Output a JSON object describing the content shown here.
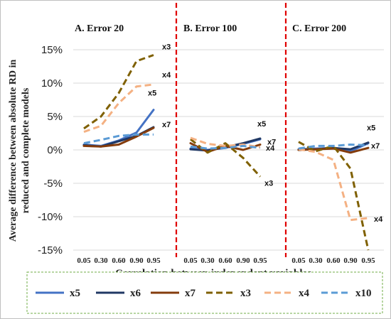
{
  "chart_data": {
    "type": "line",
    "ylabel_lines": [
      "Average difference between absolute RD in",
      "reduced and complete models"
    ],
    "xlabel": "Correlation between independent variables",
    "y_ticks": [
      "15%",
      "10%",
      "5%",
      "0%",
      "-5%",
      "-10%",
      "-15%"
    ],
    "ylim": [
      -15,
      15
    ],
    "categories": [
      "0.05",
      "0.30",
      "0.60",
      "0.90",
      "0.95"
    ],
    "legend_position": "bottom",
    "panels": [
      {
        "title": "A. Error 20",
        "series": [
          {
            "name": "x5",
            "values": [
              0.8,
              0.6,
              1.4,
              2.6,
              6.0
            ]
          },
          {
            "name": "x6",
            "values": [
              0.7,
              0.5,
              1.3,
              2.1,
              3.4
            ]
          },
          {
            "name": "x7",
            "values": [
              0.6,
              0.5,
              0.8,
              2.0,
              3.3
            ]
          },
          {
            "name": "x3",
            "values": [
              3.2,
              5.0,
              8.5,
              13.3,
              14.2
            ]
          },
          {
            "name": "x4",
            "values": [
              2.7,
              3.6,
              7.0,
              9.5,
              9.8
            ]
          },
          {
            "name": "x10",
            "values": [
              1.0,
              1.5,
              2.1,
              2.3,
              2.3
            ]
          }
        ],
        "annotations": [
          {
            "text": "x3",
            "series": "x3"
          },
          {
            "text": "x4",
            "series": "x4"
          },
          {
            "text": "x5",
            "series": "x5"
          },
          {
            "text": "x7",
            "series": "x7"
          }
        ]
      },
      {
        "title": "B. Error 100",
        "series": [
          {
            "name": "x5",
            "values": [
              0.2,
              0.0,
              0.3,
              0.9,
              1.6
            ]
          },
          {
            "name": "x6",
            "values": [
              0.1,
              -0.1,
              0.4,
              1.0,
              1.7
            ]
          },
          {
            "name": "x7",
            "values": [
              1.0,
              -0.3,
              0.6,
              0.0,
              0.8
            ]
          },
          {
            "name": "x3",
            "values": [
              1.6,
              -0.4,
              1.0,
              -1.2,
              -4.0
            ]
          },
          {
            "name": "x4",
            "values": [
              1.8,
              0.9,
              0.6,
              0.8,
              0.4
            ]
          },
          {
            "name": "x10",
            "values": [
              0.5,
              0.2,
              0.3,
              0.6,
              0.3
            ]
          }
        ],
        "annotations": [
          {
            "text": "x5",
            "series": "x5"
          },
          {
            "text": "x7",
            "series": "x7"
          },
          {
            "text": "x4",
            "series": "x4"
          },
          {
            "text": "x3",
            "series": "x3"
          }
        ]
      },
      {
        "title": "C. Error 200",
        "series": [
          {
            "name": "x5",
            "values": [
              0.1,
              0.2,
              0.3,
              -0.2,
              1.0
            ]
          },
          {
            "name": "x6",
            "values": [
              0.0,
              0.1,
              0.3,
              0.1,
              1.1
            ]
          },
          {
            "name": "x7",
            "values": [
              0.0,
              0.1,
              0.2,
              -0.4,
              0.3
            ]
          },
          {
            "name": "x3",
            "values": [
              1.2,
              -0.2,
              0.6,
              -2.8,
              -15.0
            ]
          },
          {
            "name": "x4",
            "values": [
              0.1,
              -0.3,
              -1.5,
              -10.5,
              -10.2
            ]
          },
          {
            "name": "x10",
            "values": [
              0.2,
              0.6,
              0.6,
              0.8,
              0.7
            ]
          }
        ],
        "annotations": [
          {
            "text": "x5",
            "series": "x5"
          },
          {
            "text": "x7",
            "series": "x7"
          },
          {
            "text": "x4",
            "series": "x4"
          }
        ]
      }
    ],
    "legend": [
      {
        "name": "x5",
        "color": "#4472c4",
        "dash": false
      },
      {
        "name": "x6",
        "color": "#203864",
        "dash": false
      },
      {
        "name": "x7",
        "color": "#843c0c",
        "dash": false
      },
      {
        "name": "x3",
        "color": "#7f6000",
        "dash": true
      },
      {
        "name": "x4",
        "color": "#f4b183",
        "dash": true
      },
      {
        "name": "x10",
        "color": "#5b9bd5",
        "dash": true
      }
    ]
  }
}
